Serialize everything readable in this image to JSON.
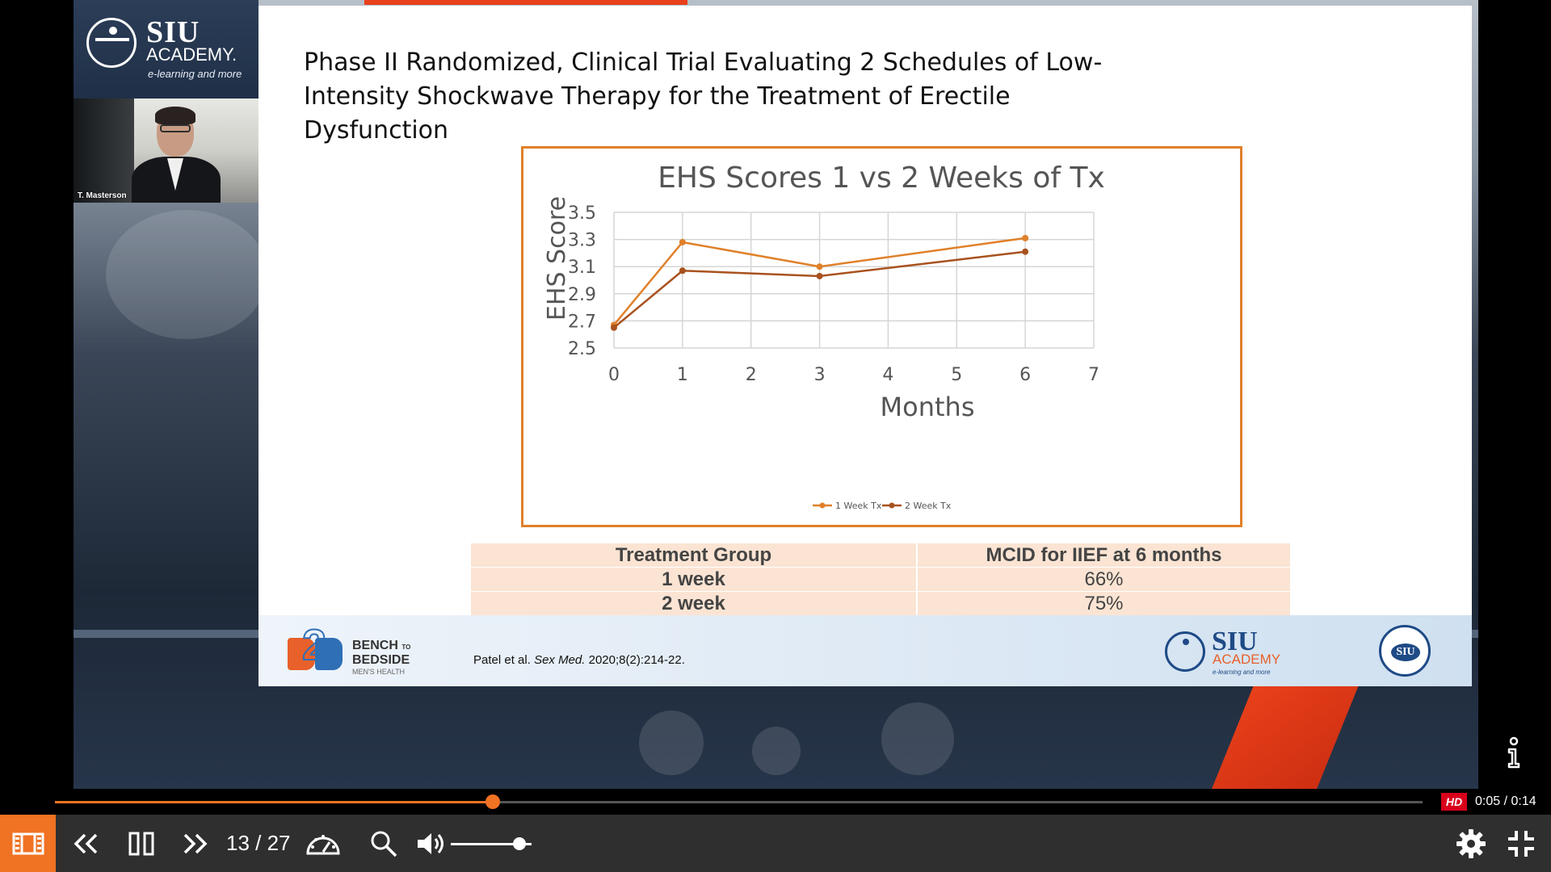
{
  "presenter": {
    "name": "T. Masterson"
  },
  "branding": {
    "siu_name": "SIU",
    "siu_academy": "ACADEMY.",
    "siu_tagline": "e-learning and more",
    "footer_siu_name": "SIU",
    "footer_siu_academy": "ACADEMY",
    "footer_siu_tagline": "e-learning and more",
    "b2b_bench": "BENCH",
    "b2b_to": "TO",
    "b2b_bedside": "BEDSIDE",
    "b2b_mens": "MEN'S HEALTH",
    "seal_text": "SIU",
    "accent_orange": "#f07223",
    "accent_blue": "#1e4a86"
  },
  "slide": {
    "title": "Phase II Randomized, Clinical Trial Evaluating 2 Schedules of Low-Intensity Shockwave Therapy for the Treatment of Erectile Dysfunction",
    "citation_authors": "Patel et al.",
    "citation_journal": "Sex Med.",
    "citation_ref": "2020;8(2):214-22.",
    "table": {
      "headers": [
        "Treatment Group",
        "MCID for IIEF  at 6 months"
      ],
      "rows": [
        [
          "1 week",
          "66%"
        ],
        [
          "2 week",
          "75%"
        ]
      ]
    }
  },
  "chart_data": {
    "type": "line",
    "title": "EHS Scores 1 vs 2 Weeks of Tx",
    "xlabel": "Months",
    "ylabel": "EHS Score",
    "xlim": [
      0,
      7
    ],
    "ylim": [
      2.5,
      3.5
    ],
    "xticks": [
      0,
      1,
      2,
      3,
      4,
      5,
      6,
      7
    ],
    "yticks": [
      2.5,
      2.7,
      2.9,
      3.1,
      3.3,
      3.5
    ],
    "grid": true,
    "legend": "bottom-center",
    "series": [
      {
        "name": "1 Week Tx",
        "color": "#e0802a",
        "x": [
          0,
          1,
          3,
          6
        ],
        "y": [
          2.67,
          3.28,
          3.1,
          3.31
        ]
      },
      {
        "name": "2 Week Tx",
        "color": "#a8521e",
        "x": [
          0,
          1,
          3,
          6
        ],
        "y": [
          2.65,
          3.07,
          3.03,
          3.21
        ]
      }
    ]
  },
  "player": {
    "slide_current": "13",
    "slide_total": "27",
    "slide_counter": "13 / 27",
    "time_current": "0:05",
    "time_total": "0:14",
    "time_display": "0:05 / 0:14",
    "hd_label": "HD",
    "progress": 0.32,
    "volume": 0.85,
    "icons": {
      "filmstrip": "filmstrip-icon",
      "previous": "chevron-double-left-icon",
      "pause": "pause-icon",
      "next": "chevron-double-right-icon",
      "speed": "speedometer-icon",
      "search": "search-icon",
      "volume": "volume-icon",
      "settings": "gear-icon",
      "exit_fullscreen": "exit-fullscreen-icon",
      "info": "info-icon"
    }
  }
}
